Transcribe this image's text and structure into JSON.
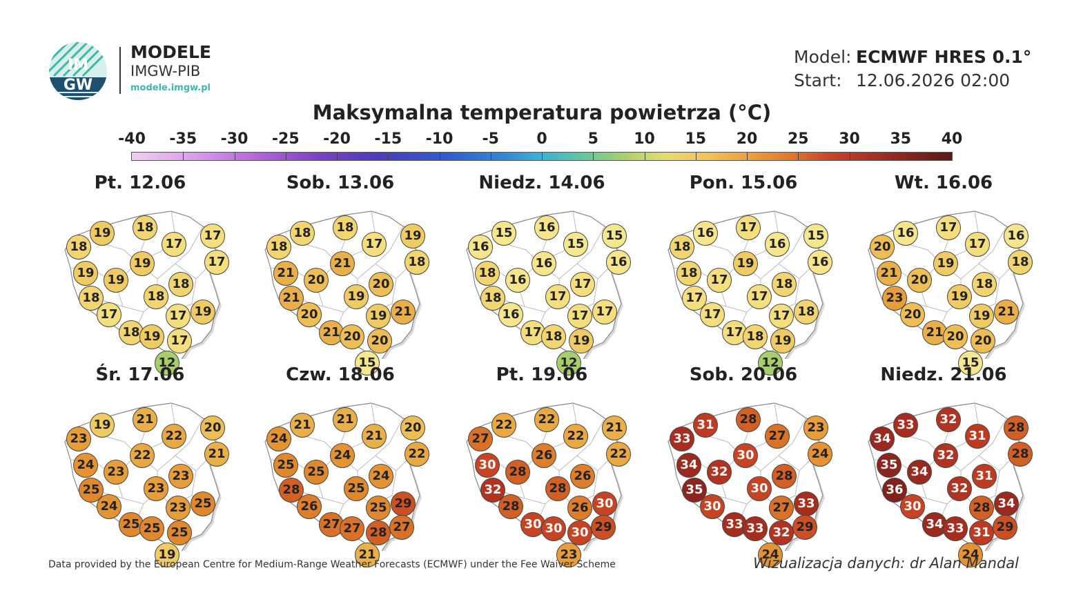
{
  "logo": {
    "title": "MODELE",
    "subtitle": "IMGW-PIB",
    "url": "modele.imgw.pl",
    "emblem_text_top": "IM",
    "emblem_text_bottom": "GW"
  },
  "meta": {
    "model_label": "Model:",
    "model_value": "ECMWF HRES 0.1°",
    "start_label": "Start:",
    "start_value": "12.06.2026 02:00"
  },
  "title": "Maksymalna temperatura powietrza (°C)",
  "scale": {
    "ticks": [
      "-40",
      "-35",
      "-30",
      "-25",
      "-20",
      "-15",
      "-10",
      "-5",
      "0",
      "5",
      "10",
      "15",
      "20",
      "25",
      "30",
      "35",
      "40"
    ],
    "min": -40,
    "max": 40
  },
  "colors": {
    "c12": "#a6cf6b",
    "c15": "#f5e88c",
    "c16": "#f6e58a",
    "c17": "#f5df7c",
    "c18": "#f2d56f",
    "c19": "#f0cb62",
    "c20": "#eebd54",
    "c21": "#ebaf48",
    "c22": "#eaa840",
    "c23": "#e89d38",
    "c24": "#e59331",
    "c25": "#e2882b",
    "c26": "#df7d28",
    "c27": "#db7125",
    "c28": "#d45f23",
    "c29": "#cd4f22",
    "c30": "#c84322",
    "c31": "#bf3a21",
    "c32": "#b43220",
    "c33": "#a82d1f",
    "c34": "#9b291e",
    "c35": "#8e251c",
    "c36": "#82221a"
  },
  "days": [
    {
      "label": "Pt. 12.06",
      "values": [
        18,
        19,
        18,
        17,
        17,
        19,
        17,
        19,
        19,
        18,
        18,
        18,
        17,
        17,
        19,
        18,
        19,
        17,
        12
      ]
    },
    {
      "label": "Sob. 13.06",
      "values": [
        18,
        18,
        18,
        17,
        19,
        21,
        18,
        21,
        20,
        20,
        21,
        19,
        20,
        19,
        21,
        21,
        20,
        20,
        15
      ]
    },
    {
      "label": "Niedz. 14.06",
      "values": [
        16,
        15,
        16,
        15,
        15,
        16,
        16,
        18,
        16,
        17,
        18,
        17,
        16,
        17,
        17,
        17,
        18,
        19,
        12
      ]
    },
    {
      "label": "Pon. 15.06",
      "values": [
        18,
        16,
        17,
        16,
        15,
        19,
        16,
        18,
        17,
        18,
        17,
        17,
        17,
        17,
        18,
        17,
        18,
        19,
        12
      ]
    },
    {
      "label": "Wt. 16.06",
      "values": [
        20,
        16,
        17,
        17,
        16,
        19,
        18,
        21,
        20,
        18,
        23,
        19,
        20,
        19,
        21,
        21,
        20,
        20,
        15
      ]
    },
    {
      "label": "Śr. 17.06",
      "values": [
        23,
        19,
        21,
        22,
        20,
        22,
        21,
        24,
        23,
        23,
        25,
        23,
        24,
        23,
        25,
        25,
        25,
        25,
        19
      ]
    },
    {
      "label": "Czw. 18.06",
      "values": [
        24,
        21,
        21,
        21,
        20,
        24,
        22,
        25,
        25,
        24,
        28,
        25,
        26,
        25,
        29,
        27,
        27,
        28,
        27,
        21
      ]
    },
    {
      "label": "Pt. 19.06",
      "values": [
        27,
        22,
        22,
        22,
        21,
        26,
        22,
        30,
        28,
        26,
        32,
        28,
        28,
        26,
        30,
        30,
        30,
        30,
        29,
        23
      ]
    },
    {
      "label": "Sob. 20.06",
      "values": [
        33,
        31,
        28,
        27,
        23,
        30,
        24,
        34,
        32,
        28,
        35,
        30,
        30,
        27,
        33,
        33,
        33,
        32,
        29,
        24
      ]
    },
    {
      "label": "Niedz. 21.06",
      "values": [
        34,
        33,
        32,
        31,
        28,
        32,
        28,
        35,
        34,
        31,
        36,
        32,
        30,
        28,
        34,
        34,
        33,
        31,
        29,
        24
      ]
    }
  ],
  "footer": {
    "source": "Data provided by the European Centre for Medium-Range Weather Forecasts (ECMWF) under the Fee Waiver Scheme",
    "credit": "Wizualizacja danych: dr Alan Mandal"
  }
}
